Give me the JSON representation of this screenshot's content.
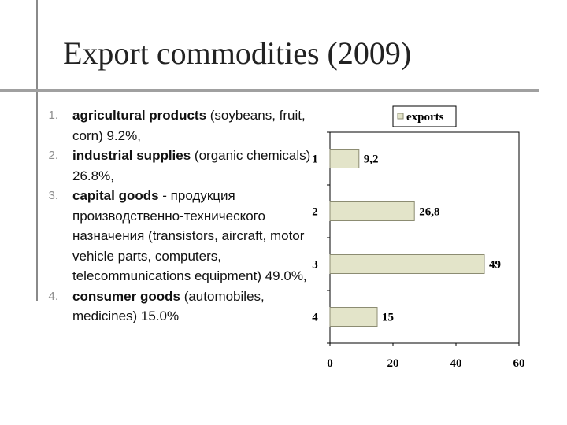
{
  "title": "Export commodities (2009)",
  "items": [
    {
      "num": "1.",
      "bold": "agricultural products",
      "rest": " (soybeans, fruit, corn) 9.2%,"
    },
    {
      "num": "2.",
      "bold": "industrial supplies",
      "rest": " (organic chemicals) 26.8%,"
    },
    {
      "num": "3.",
      "bold": "capital goods",
      "rest": " - продукция производственно-технического назначения (transistors, aircraft, motor vehicle parts, computers, telecommunications equipment) 49.0%,"
    },
    {
      "num": "4.",
      "bold": "consumer goods",
      "rest": " (automobiles, medicines) 15.0%"
    }
  ],
  "chart_data": {
    "type": "bar",
    "orientation": "horizontal",
    "categories": [
      "1",
      "2",
      "3",
      "4"
    ],
    "series": [
      {
        "name": "exports",
        "values": [
          9.2,
          26.8,
          49,
          15
        ],
        "labels": [
          "9,2",
          "26,8",
          "49",
          "15"
        ]
      }
    ],
    "xlim": [
      0,
      60
    ],
    "xticks": [
      "0",
      "20",
      "40",
      "60"
    ],
    "legend": "top-right",
    "bar_color": "#e3e4c9",
    "bar_border": "#8c8c72"
  }
}
